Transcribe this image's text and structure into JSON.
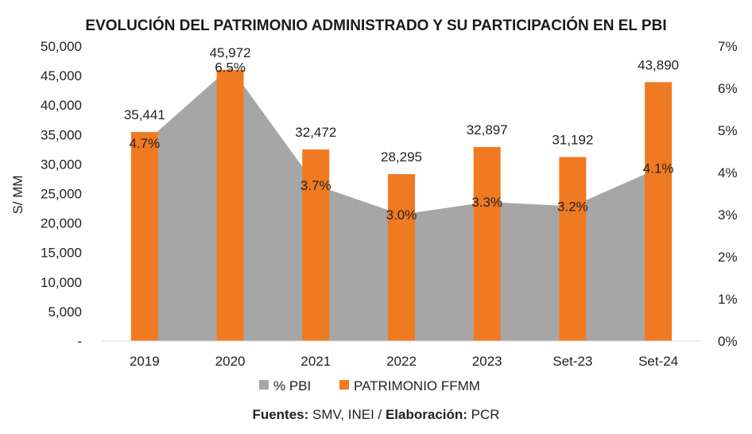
{
  "chart_data": {
    "type": "bar",
    "title": "EVOLUCIÓN DEL PATRIMONIO ADMINISTRADO Y SU PARTICIPACIÓN EN EL PBI",
    "categories": [
      "2019",
      "2020",
      "2021",
      "2022",
      "2023",
      "Set-23",
      "Set-24"
    ],
    "ylabel": "S/ MM",
    "ylim": [
      0,
      50000
    ],
    "y_ticks": [
      "-",
      "5,000",
      "10,000",
      "15,000",
      "20,000",
      "25,000",
      "30,000",
      "35,000",
      "40,000",
      "45,000",
      "50,000"
    ],
    "y2lim": [
      0,
      7
    ],
    "y2_ticks": [
      "0%",
      "1%",
      "2%",
      "3%",
      "4%",
      "5%",
      "6%",
      "7%"
    ],
    "series": [
      {
        "name": "PATRIMONIO FFMM",
        "kind": "bar",
        "axis": "left",
        "color": "#F07A22",
        "values": [
          35441,
          45972,
          32472,
          28295,
          32897,
          31192,
          43890
        ],
        "labels": [
          "35,441",
          "45,972",
          "32,472",
          "28,295",
          "32,897",
          "31,192",
          "43,890"
        ]
      },
      {
        "name": "% PBI",
        "kind": "area",
        "axis": "right",
        "color": "#A6A6A6",
        "values": [
          4.7,
          6.5,
          3.7,
          3.0,
          3.3,
          3.2,
          4.1
        ],
        "labels": [
          "4.7%",
          "6.5%",
          "3.7%",
          "3.0%",
          "3.3%",
          "3.2%",
          "4.1%"
        ]
      }
    ],
    "legend": {
      "position": "bottom",
      "items": [
        "% PBI",
        "PATRIMONIO FFMM"
      ]
    },
    "source": {
      "fuentes_label": "Fuentes:",
      "fuentes_value": " SMV, INEI / ",
      "elaboracion_label": "Elaboración:",
      "elaboracion_value": " PCR"
    },
    "grid": false
  }
}
